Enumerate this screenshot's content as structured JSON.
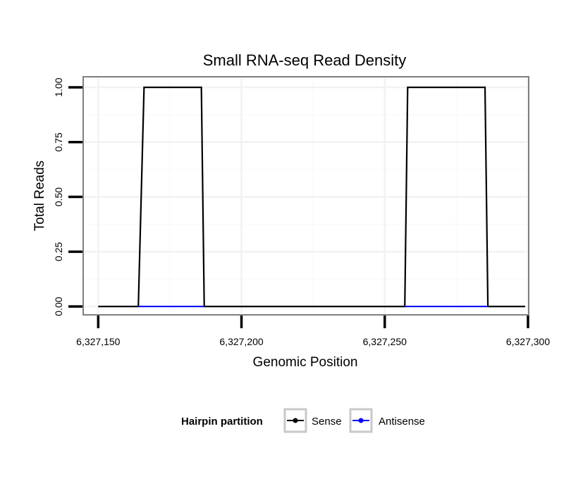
{
  "chart_data": {
    "type": "line",
    "title": "Small RNA-seq Read Density",
    "xlabel": "Genomic Position",
    "ylabel": "Total Reads",
    "xlim": [
      6327145,
      6327300
    ],
    "ylim": [
      -0.035,
      1.045
    ],
    "x_ticks": [
      6327150,
      6327200,
      6327250,
      6327300
    ],
    "x_tick_labels": [
      "6,327,150",
      "6,327,200",
      "6,327,250",
      "6,327,300"
    ],
    "y_ticks": [
      0,
      0.25,
      0.5,
      0.75,
      1
    ],
    "y_tick_labels": [
      "0.00",
      "0.25",
      "0.50",
      "0.75",
      "1.00"
    ],
    "grid": true,
    "legend": {
      "title": "Hairpin partition",
      "position": "bottom",
      "entries": [
        "Sense",
        "Antisense"
      ]
    },
    "series": [
      {
        "name": "Sense",
        "color": "#000000",
        "x": [
          6327150,
          6327164,
          6327166,
          6327186,
          6327187,
          6327257,
          6327258,
          6327285,
          6327286,
          6327299
        ],
        "y": [
          0,
          0,
          1,
          1,
          0,
          0,
          1,
          1,
          0,
          0
        ]
      },
      {
        "name": "Antisense",
        "color": "#0000ff",
        "x": [
          6327164,
          6327187,
          6327257,
          6327286
        ],
        "y": [
          0,
          0,
          0,
          0
        ]
      }
    ]
  }
}
